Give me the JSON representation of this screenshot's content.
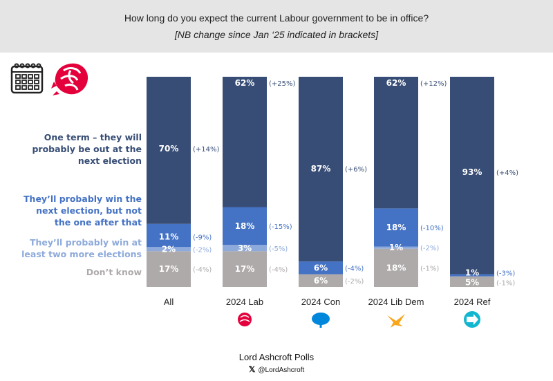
{
  "header": {
    "title": "How long do you expect the current Labour government to be in office?",
    "subtitle": "[NB change since Jan ‘25 indicated in brackets]"
  },
  "icons": {
    "calendar": "calendar-icon",
    "rose": "labour-rose-icon"
  },
  "footer": {
    "title": "Lord Ashcroft Polls",
    "handle": "@LordAshcroft",
    "x_icon": "𝕏"
  },
  "colors": {
    "one_term": "#374d75",
    "win_next": "#4472c4",
    "win_two": "#8eaadb",
    "dont_know": "#aeaaaa",
    "header_bg": "#e5e5e5",
    "labour": "#e4003b",
    "conservative": "#0087dc",
    "libdem": "#faa61a",
    "reform": "#12b6cf"
  },
  "chart_data": {
    "type": "bar",
    "stacked": true,
    "percent": true,
    "title": "How long do you expect the current Labour government to be in office?",
    "subtitle": "[NB change since Jan ‘25 indicated in brackets]",
    "categories": [
      "All",
      "2024 Lab",
      "2024 Con",
      "2024 Lib Dem",
      "2024 Ref"
    ],
    "category_logos": [
      null,
      "labour-rose-icon",
      "conservative-tree-icon",
      "libdem-bird-icon",
      "reform-uk-icon"
    ],
    "ylim": [
      0,
      100
    ],
    "legend_position": "left",
    "series": [
      {
        "name": "One term – they will probably be out at the next election",
        "values": [
          70,
          62,
          87,
          62,
          93
        ],
        "labels": [
          "70%",
          "62%",
          "87%",
          "62%",
          "93%"
        ],
        "changes": [
          "(+14%)",
          "(+25%)",
          "(+6%)",
          "(+12%)",
          "(+4%)"
        ],
        "color": "#374d75",
        "label_color": "#374d75"
      },
      {
        "name": "They’ll probably win the next election, but not the one after that",
        "values": [
          11,
          18,
          6,
          18,
          1
        ],
        "labels": [
          "11%",
          "18%",
          "6%",
          "18%",
          "1%"
        ],
        "changes": [
          "(-9%)",
          "(-15%)",
          "(-4%)",
          "(-10%)",
          "(-3%)"
        ],
        "color": "#4472c4",
        "label_color": "#4472c4"
      },
      {
        "name": "They’ll probably win at least two more elections",
        "values": [
          2,
          3,
          0,
          1,
          0
        ],
        "labels": [
          "2%",
          "3%",
          "",
          "1%",
          ""
        ],
        "changes": [
          "(-2%)",
          "(-5%)",
          "",
          "(-2%)",
          ""
        ],
        "color": "#8eaadb",
        "label_color": "#8eaadb"
      },
      {
        "name": "Don’t know",
        "values": [
          17,
          17,
          6,
          18,
          5
        ],
        "labels": [
          "17%",
          "17%",
          "6%",
          "18%",
          "5%"
        ],
        "changes": [
          "(-4%)",
          "(-4%)",
          "(-2%)",
          "(-1%)",
          "(-1%)"
        ],
        "color": "#aeaaaa",
        "label_color": "#aeaaaa"
      }
    ],
    "legend": [
      {
        "lines": [
          "One term – they will",
          "probably be out at the",
          "next election"
        ]
      },
      {
        "lines": [
          "They’ll probably win the",
          "next election, but not",
          "the one after that"
        ]
      },
      {
        "lines": [
          "They’ll probably win at",
          "least two more elections"
        ]
      },
      {
        "lines": [
          "Don’t know"
        ]
      }
    ]
  }
}
